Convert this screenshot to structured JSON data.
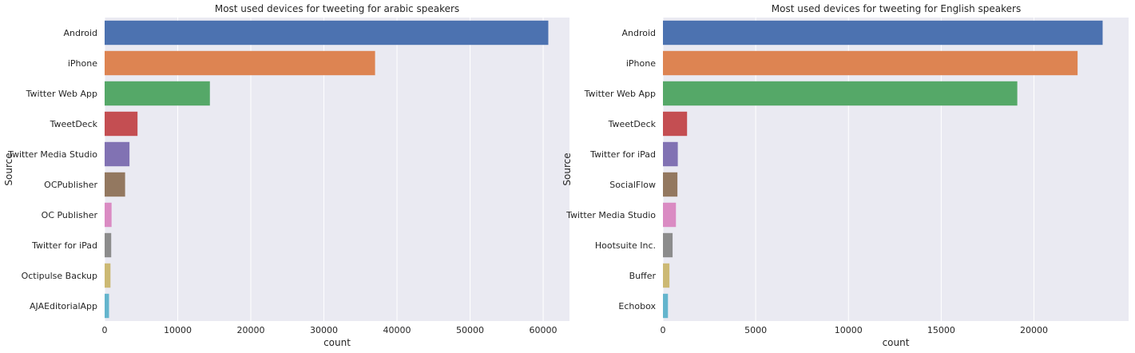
{
  "chart_data": [
    {
      "type": "bar",
      "orientation": "horizontal",
      "title": "Most used devices for tweeting for arabic speakers",
      "xlabel": "count",
      "ylabel": "Source",
      "categories": [
        "Android",
        "iPhone",
        "Twitter Web App",
        "TweetDeck",
        "Twitter Media Studio",
        "OCPublisher",
        "OC Publisher",
        "Twitter for iPad",
        "Octipulse Backup",
        "AJAEditorialApp"
      ],
      "values": [
        60700,
        37000,
        14400,
        4500,
        3400,
        2800,
        950,
        900,
        800,
        600
      ],
      "xlim": [
        0,
        63600
      ],
      "xticks": [
        0,
        10000,
        20000,
        30000,
        40000,
        50000,
        60000
      ],
      "grid": true,
      "colors": [
        "#4c72b0",
        "#dd8452",
        "#55a868",
        "#c44e52",
        "#8172b3",
        "#937860",
        "#da8bc3",
        "#8c8c8c",
        "#ccb974",
        "#64b5cd"
      ]
    },
    {
      "type": "bar",
      "orientation": "horizontal",
      "title": "Most used devices for tweeting for English speakers",
      "xlabel": "count",
      "ylabel": "Source",
      "categories": [
        "Android",
        "iPhone",
        "Twitter Web App",
        "TweetDeck",
        "Twitter for iPad",
        "SocialFlow",
        "Twitter Media Studio",
        "Hootsuite Inc.",
        "Buffer",
        "Echobox"
      ],
      "values": [
        23700,
        22350,
        19100,
        1300,
        800,
        780,
        700,
        520,
        350,
        270
      ],
      "xlim": [
        0,
        25100
      ],
      "xticks": [
        0,
        5000,
        10000,
        15000,
        20000
      ],
      "grid": true,
      "colors": [
        "#4c72b0",
        "#dd8452",
        "#55a868",
        "#c44e52",
        "#8172b3",
        "#937860",
        "#da8bc3",
        "#8c8c8c",
        "#ccb974",
        "#64b5cd"
      ]
    }
  ]
}
